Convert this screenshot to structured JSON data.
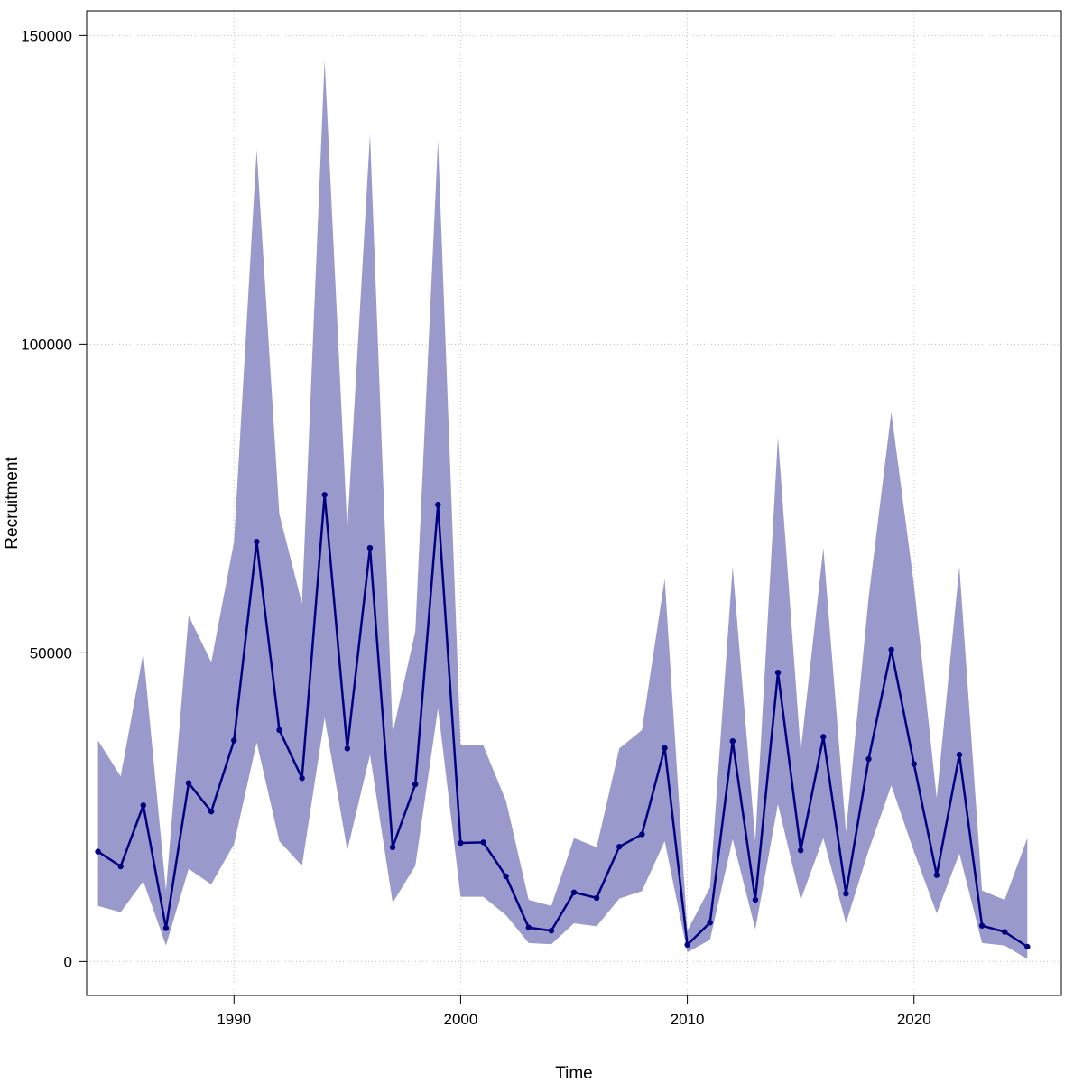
{
  "chart_data": {
    "type": "line",
    "title": "",
    "xlabel": "Time",
    "ylabel": "Recruitment",
    "xlim": [
      1983.5,
      2026.5
    ],
    "ylim": [
      -5500,
      154000
    ],
    "x_ticks": [
      1990,
      2000,
      2010,
      2020
    ],
    "y_ticks": [
      0,
      50000,
      100000,
      150000
    ],
    "grid": true,
    "legend": "none",
    "colors": {
      "line": "#000080",
      "band": "#9999cc",
      "grid": "#c0c0c0"
    },
    "x": [
      1984,
      1985,
      1986,
      1987,
      1988,
      1989,
      1990,
      1991,
      1992,
      1993,
      1994,
      1995,
      1996,
      1997,
      1998,
      1999,
      2000,
      2001,
      2002,
      2003,
      2004,
      2005,
      2006,
      2007,
      2008,
      2009,
      2010,
      2011,
      2012,
      2013,
      2014,
      2015,
      2016,
      2017,
      2018,
      2019,
      2020,
      2021,
      2022,
      2023,
      2024,
      2025
    ],
    "series": [
      {
        "values": [
          17800,
          15400,
          25300,
          5400,
          28900,
          24300,
          35800,
          68000,
          37500,
          29700,
          75600,
          34500,
          67000,
          18500,
          28700,
          74000,
          19200,
          19300,
          13800,
          5500,
          5000,
          11200,
          10300,
          18600,
          20600,
          34600,
          2700,
          6300,
          35700,
          10000,
          46800,
          18000,
          36400,
          11000,
          32800,
          50500,
          32000,
          14000,
          33500,
          5800,
          4800,
          2400
        ]
      }
    ],
    "band": {
      "upper": [
        35800,
        30000,
        50000,
        11500,
        56000,
        48500,
        68000,
        131500,
        72500,
        58000,
        146000,
        70000,
        134000,
        37000,
        53500,
        133000,
        35000,
        35000,
        26000,
        10000,
        9000,
        20000,
        18500,
        34500,
        37500,
        62000,
        5000,
        12000,
        64000,
        19500,
        85000,
        34000,
        67000,
        21000,
        59000,
        89000,
        61000,
        26500,
        64000,
        11500,
        10000,
        20000
      ],
      "lower": [
        9000,
        8000,
        13000,
        2600,
        15000,
        12500,
        19000,
        35500,
        19500,
        15500,
        39500,
        18000,
        33500,
        9500,
        15500,
        41000,
        10500,
        10500,
        7500,
        3000,
        2800,
        6200,
        5700,
        10200,
        11400,
        19500,
        1500,
        3500,
        19800,
        5200,
        25500,
        10000,
        20000,
        6200,
        18000,
        28500,
        17800,
        7800,
        17500,
        3000,
        2600,
        400
      ]
    }
  }
}
